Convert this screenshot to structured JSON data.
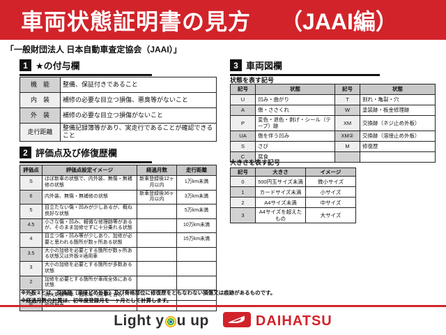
{
  "banner": {
    "title": "車両状態証明書の見方",
    "edition": "（JAAI編）",
    "bg_color": "#d2232a"
  },
  "subtitle": "「一般財団法人 日本自動車査定協会（JAAI）」",
  "section1": {
    "number": "1",
    "title": "★の付与欄",
    "rows": [
      [
        "機　能",
        "整備、保証付きであること"
      ],
      [
        "内　装",
        "補修の必要な目立つ損傷、悪臭等がないこと"
      ],
      [
        "外　装",
        "補修の必要な目立つ損傷がないこと"
      ],
      [
        "走行距離",
        "整備記録簿等があり、実走行であることが確認できること"
      ]
    ]
  },
  "section2": {
    "number": "2",
    "title": "評価点及び修復歴欄",
    "headers": [
      "評価点",
      "評価点設定イメージ",
      "経過月数",
      "走行距離"
    ],
    "rows": [
      [
        "S",
        "ほぼ新車の状態で、内外装、無傷・無補修の状態",
        "新車登録後12ヶ月以内",
        "1万km未満"
      ],
      [
        "6",
        "内外装、無傷・無補修の状態",
        "新車登録後36ヶ月以内",
        "3万km未満"
      ],
      [
        "5",
        "目立たない傷・凹みが少しあるが、概ね良好な状態",
        "",
        "5万km未満"
      ],
      [
        "4.5",
        "小さな傷・凹み、軽微な修理跡等があるが、そのまま加修せずに十分乗れる状態",
        "",
        "10万km未満"
      ],
      [
        "4",
        "目立つ傷・凹み等が少しあり、加修が必要と思われる箇所が数ヶ所ある状態",
        "",
        "15万km未満"
      ],
      [
        "3.5",
        "大小の加修を必要とする箇所が数ヶ所ある状態又は外板②適用車",
        "",
        ""
      ],
      [
        "3",
        "大小の加修を必要とする箇所が多数ある状態",
        "",
        ""
      ],
      [
        "2",
        "加修を必要とする箇所が車両全体にある状態",
        "",
        ""
      ],
      [
        "1",
        "消火剤散布車・冠水車（廃車を含む）",
        "",
        ""
      ],
      [
        "R",
        "修復歴車",
        "",
        ""
      ]
    ],
    "notes": [
      "※外板②とは、交換跡（溶接どめ外板）及び骨格部位に修復歴をともなわない損傷又は痕跡があるものです。",
      "※経過月数の計算は、初年度登録月を一ヶ月として計算します。"
    ]
  },
  "section3": {
    "number": "3",
    "title": "車両図欄",
    "state_table": {
      "caption": "状態を表す記号",
      "headers": [
        "記号",
        "状態",
        "記号",
        "状態"
      ],
      "rows": [
        [
          "U",
          "凹み・曲がり",
          "T",
          "割れ・亀裂・穴"
        ],
        [
          "A",
          "傷・ささくれ",
          "W",
          "塗装跡・板金修理跡"
        ],
        [
          "P",
          "変色・退色・剥げ・シール（テープ）跡",
          "XM",
          "交換跡（ネジ止め外板）"
        ],
        [
          "UA",
          "傷を伴う凹み",
          "XM②",
          "交換跡（溶接止め外板）"
        ],
        [
          "S",
          "さび",
          "M",
          "修復歴"
        ],
        [
          "C",
          "腐食",
          "",
          ""
        ]
      ]
    },
    "size_table": {
      "caption": "大きさを表す記号",
      "headers": [
        "記号",
        "大きさ",
        "イメージ"
      ],
      "rows": [
        [
          "0",
          "500円玉サイズ未満",
          "微小サイズ"
        ],
        [
          "1",
          "カードサイズ未満",
          "小サイズ"
        ],
        [
          "2",
          "A4サイズ未満",
          "中サイズ"
        ],
        [
          "3",
          "A4サイズを超えたもの",
          "大サイズ"
        ]
      ]
    }
  },
  "footer": {
    "slogan_part1": "Light y",
    "slogan_part2": "u up",
    "brand": "DAIHATSU",
    "brand_color": "#d2232a"
  }
}
